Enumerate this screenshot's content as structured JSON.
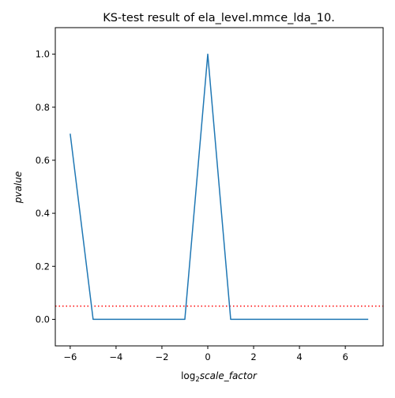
{
  "chart_data": {
    "type": "line",
    "title": "KS-test result of ela_level.mmce_lda_10.",
    "xlabel": {
      "prefix": "log",
      "subscript": "2",
      "variable": "scale_factor"
    },
    "ylabel": "pvalue",
    "xlim": [
      -6.65,
      7.65
    ],
    "ylim": [
      -0.1,
      1.1
    ],
    "xticks": [
      -6,
      -4,
      -2,
      0,
      2,
      4,
      6
    ],
    "xtick_labels": [
      "−6",
      "−4",
      "−2",
      "0",
      "2",
      "4",
      "6"
    ],
    "yticks": [
      0.0,
      0.2,
      0.4,
      0.6,
      0.8,
      1.0
    ],
    "ytick_labels": [
      "0.0",
      "0.2",
      "0.4",
      "0.6",
      "0.8",
      "1.0"
    ],
    "grid": false,
    "series": [
      {
        "color": "#1f77b4",
        "x": [
          -6,
          -5,
          -4,
          -3,
          -2,
          -1,
          0,
          1,
          2,
          3,
          4,
          5,
          6,
          7
        ],
        "y": [
          0.7,
          0.0,
          0.0,
          0.0,
          0.0,
          0.0,
          1.0,
          0.0,
          0.0,
          0.0,
          0.0,
          0.0,
          0.0,
          0.0
        ]
      }
    ],
    "reference_lines": [
      {
        "orientation": "horizontal",
        "y": 0.05,
        "color": "#ff0000",
        "style": "dotted"
      }
    ]
  }
}
